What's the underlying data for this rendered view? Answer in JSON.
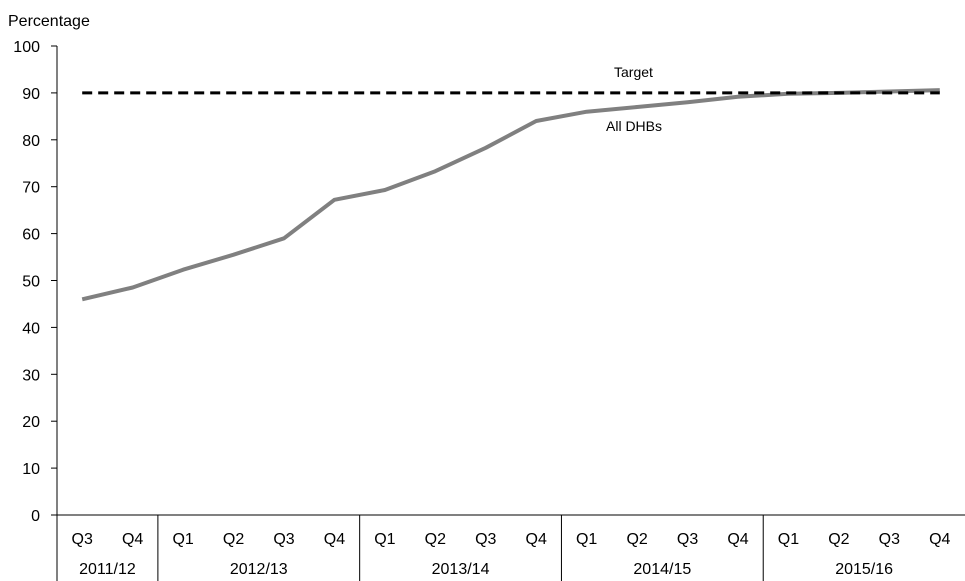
{
  "chart_data": {
    "type": "line",
    "ylabel": "Percentage",
    "ylim": [
      0,
      100
    ],
    "yticks": [
      0,
      10,
      20,
      30,
      40,
      50,
      60,
      70,
      80,
      90,
      100
    ],
    "grid": false,
    "categories": [
      "Q3",
      "Q4",
      "Q1",
      "Q2",
      "Q3",
      "Q4",
      "Q1",
      "Q2",
      "Q3",
      "Q4",
      "Q1",
      "Q2",
      "Q3",
      "Q4",
      "Q1",
      "Q2",
      "Q3",
      "Q4"
    ],
    "groups": [
      {
        "label": "2011/12",
        "count": 2
      },
      {
        "label": "2012/13",
        "count": 4
      },
      {
        "label": "2013/14",
        "count": 4
      },
      {
        "label": "2014/15",
        "count": 4
      },
      {
        "label": "2015/16",
        "count": 4
      }
    ],
    "series": [
      {
        "name": "All DHBs",
        "color": "#808080",
        "style": "solid",
        "values": [
          46,
          48.5,
          52.3,
          55.5,
          59,
          67.2,
          69.3,
          73.3,
          78.3,
          84,
          86,
          87,
          88,
          89.2,
          89.8,
          90,
          90.3,
          90.6
        ]
      },
      {
        "name": "Target",
        "color": "#000000",
        "style": "dashed",
        "values": [
          90,
          90,
          90,
          90,
          90,
          90,
          90,
          90,
          90,
          90,
          90,
          90,
          90,
          90,
          90,
          90,
          90,
          90
        ]
      }
    ]
  }
}
